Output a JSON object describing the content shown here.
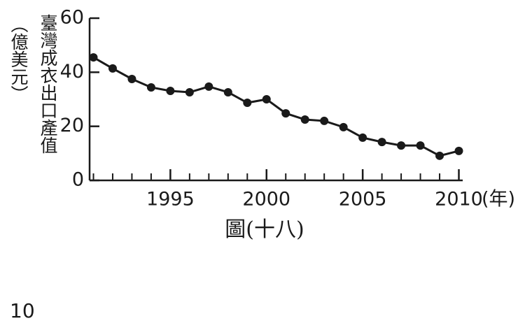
{
  "chart_data": {
    "type": "line",
    "y_label": "臺灣成衣出口產值",
    "y_unit": "（億美元）",
    "x_label": "(年)",
    "caption": "圖(十八)",
    "x": [
      1991,
      1992,
      1993,
      1994,
      1995,
      1996,
      1997,
      1998,
      1999,
      2000,
      2001,
      2002,
      2003,
      2004,
      2005,
      2006,
      2007,
      2008,
      2009,
      2010
    ],
    "values": [
      45.5,
      41.4,
      37.5,
      34.4,
      33.1,
      32.6,
      34.7,
      32.6,
      28.7,
      30.0,
      24.8,
      22.5,
      22.0,
      19.7,
      15.8,
      14.2,
      12.9,
      12.9,
      9.1,
      10.9
    ],
    "color": "#1a1a1a",
    "xlim": [
      1990.8,
      2010.2
    ],
    "xticks": [
      1995,
      2000,
      2005,
      2010
    ],
    "ylim": [
      0,
      60
    ],
    "yticks": [
      0,
      20,
      40,
      60
    ]
  },
  "page_number": "10"
}
